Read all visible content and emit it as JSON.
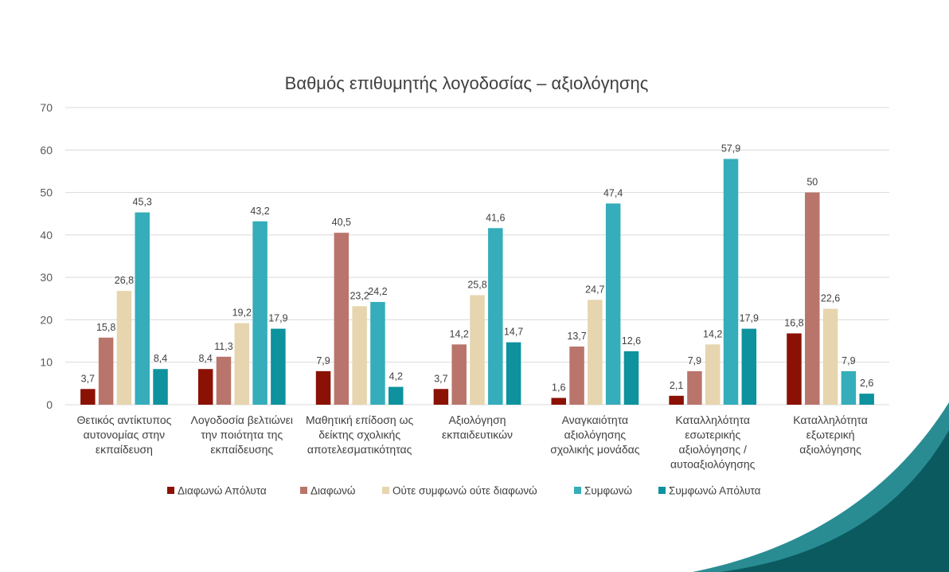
{
  "chart_data": {
    "type": "bar",
    "title": "Βαθμός επιθυμητής λογοδοσίας – αξιολόγησης",
    "xlabel": "",
    "ylabel": "",
    "ylim": [
      0,
      70
    ],
    "yticks": [
      0,
      10,
      20,
      30,
      40,
      50,
      60,
      70
    ],
    "grid": true,
    "legend_position": "bottom",
    "categories": [
      [
        "Θετικός αντίκτυπος",
        "αυτονομίας στην",
        "εκπαίδευση"
      ],
      [
        "Λογοδοσία βελτιώνει",
        "την ποιότητα της",
        "εκπαίδευσης"
      ],
      [
        "Μαθητική επίδοση ως",
        "δείκτης σχολικής",
        "αποτελεσματικότητας"
      ],
      [
        "Αξιολόγηση",
        "εκπαιδευτικών"
      ],
      [
        "Αναγκαιότητα",
        "αξιολόγησης",
        "σχολικής μονάδας"
      ],
      [
        "Καταλληλότητα",
        "εσωτερικής",
        "αξιολόγησης /",
        "αυτοαξιολόγησης"
      ],
      [
        "Καταλληλότητα",
        "εξωτερική",
        "αξιολόγησης"
      ]
    ],
    "series": [
      {
        "name": "Διαφωνώ Απόλυτα",
        "color": "#8b1105",
        "values": [
          3.7,
          8.4,
          7.9,
          3.7,
          1.6,
          2.1,
          16.8
        ],
        "labels": [
          "3,7",
          "8,4",
          "7,9",
          "3,7",
          "1,6",
          "2,1",
          "16,8"
        ]
      },
      {
        "name": "Διαφωνώ",
        "color": "#b9756b",
        "values": [
          15.8,
          11.3,
          40.5,
          14.2,
          13.7,
          7.9,
          50
        ],
        "labels": [
          "15,8",
          "11,3",
          "40,5",
          "14,2",
          "13,7",
          "7,9",
          "50"
        ]
      },
      {
        "name": "Ούτε συμφωνώ ούτε διαφωνώ",
        "color": "#e6d5ae",
        "values": [
          26.8,
          19.2,
          23.2,
          25.8,
          24.7,
          14.2,
          22.6
        ],
        "labels": [
          "26,8",
          "19,2",
          "23,2",
          "25,8",
          "24,7",
          "14,2",
          "22,6"
        ]
      },
      {
        "name": "Συμφωνώ",
        "color": "#35adbb",
        "values": [
          45.3,
          43.2,
          24.2,
          41.6,
          47.4,
          57.9,
          7.9
        ],
        "labels": [
          "45,3",
          "43,2",
          "24,2",
          "41,6",
          "47,4",
          "57,9",
          "7,9"
        ]
      },
      {
        "name": "Συμφωνώ Απόλυτα",
        "color": "#0d929e",
        "values": [
          8.4,
          17.9,
          4.2,
          14.7,
          12.6,
          17.9,
          2.6
        ],
        "labels": [
          "8,4",
          "17,9",
          "4,2",
          "14,7",
          "12,6",
          "17,9",
          "2,6"
        ]
      }
    ]
  },
  "colors": {
    "gridline": "#d9d9d9",
    "decor_dark": "#0a5a60",
    "decor_light": "#2a8c93"
  }
}
